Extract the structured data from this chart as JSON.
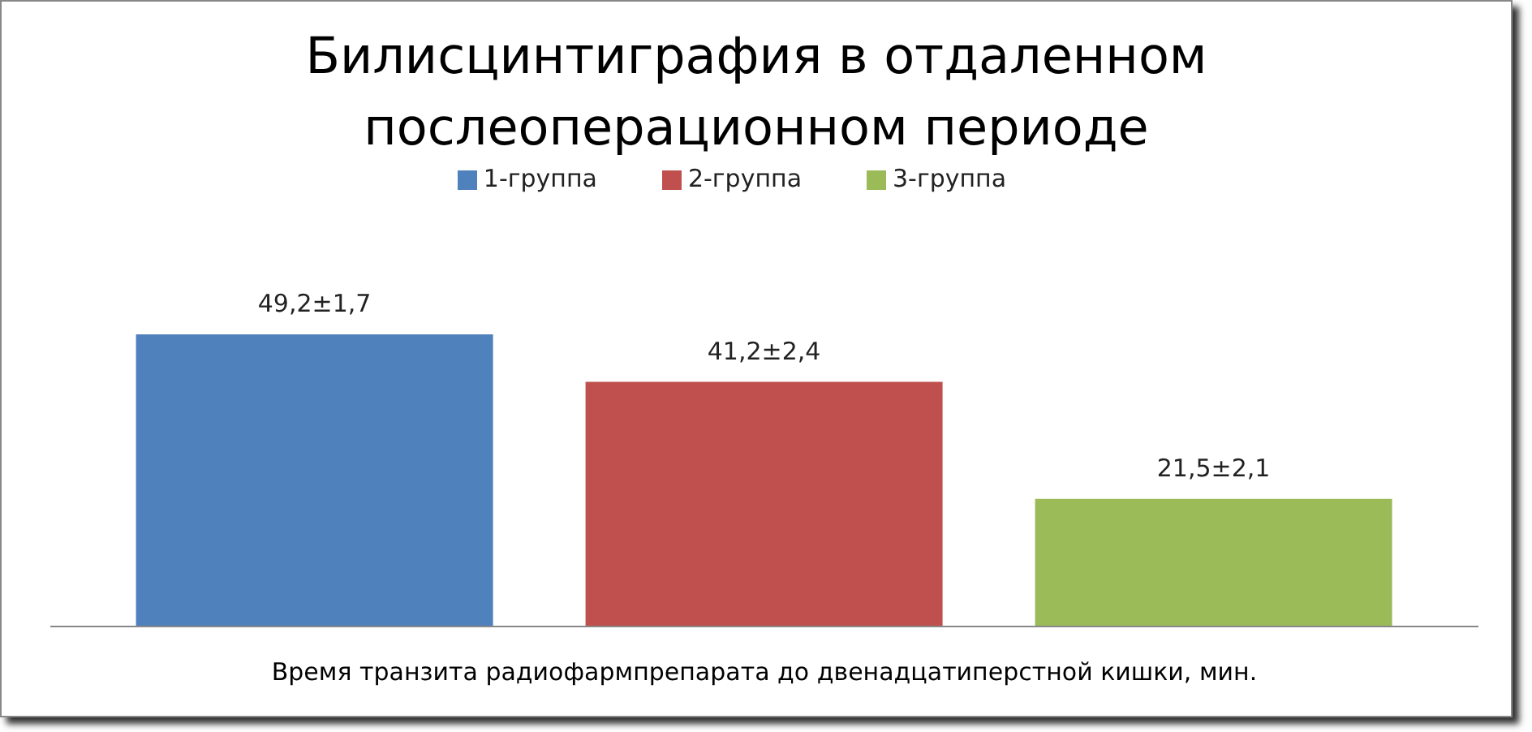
{
  "chart_data": {
    "type": "bar",
    "title": "Билисцинтиграфия в отдаленном послеоперационном периоде",
    "categories": [
      null
    ],
    "xlabel": "Время транзита радиофармпрепарата до двенадцатиперстной кишки, мин.",
    "series": [
      {
        "name": "1-группа",
        "color": "#4f81bd",
        "values": [
          49.2
        ],
        "value_labels": [
          "49,2±1,7"
        ]
      },
      {
        "name": "2-группа",
        "color": "#c0504d",
        "values": [
          41.2
        ],
        "value_labels": [
          "41,2±2,4"
        ]
      },
      {
        "name": "3-группа",
        "color": "#9bbb59",
        "values": [
          21.5
        ],
        "value_labels": [
          "21,5±2,1"
        ]
      }
    ],
    "legend": "top",
    "tick_labels": false,
    "grid": false
  }
}
